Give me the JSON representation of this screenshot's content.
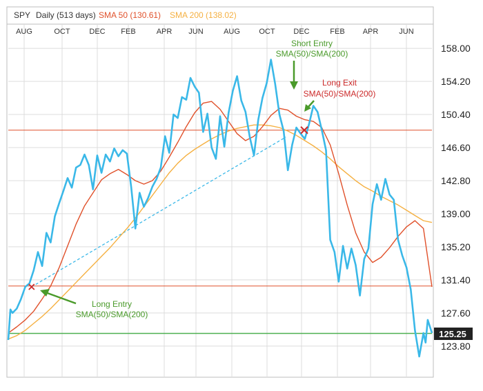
{
  "header": {
    "symbol": "SPY",
    "period": "Daily (513 days)",
    "sma50_label": "SMA 50 (130.61)",
    "sma200_label": "SMA 200 (138.02)"
  },
  "colors": {
    "price": "#3ab8e8",
    "sma50": "#e0502a",
    "sma200": "#f5b041",
    "entry_line": "#e0502a",
    "current_line": "#4caf50",
    "annotation_green": "#4a9a2a",
    "annotation_red": "#cc2a2a",
    "grid": "#dcdcdc",
    "last_price_bg": "#222222"
  },
  "annotations": {
    "long_entry_title": "Long Entry",
    "long_entry_sub": "SMA(50)/SMA(200)",
    "short_entry_title": "Short Entry",
    "short_entry_sub": "SMA(50)/SMA(200)",
    "long_exit_title": "Long Exit",
    "long_exit_sub": "SMA(50)/SMA(200)"
  },
  "chart_data": {
    "type": "line",
    "x_axis_labels": [
      "AUG",
      "OCT",
      "DEC",
      "FEB",
      "APR",
      "JUN",
      "AUG",
      "OCT",
      "DEC",
      "FEB",
      "APR",
      "JUN"
    ],
    "y_ticks": [
      158.0,
      154.2,
      150.4,
      146.6,
      142.8,
      139.0,
      135.2,
      131.4,
      127.6,
      123.8
    ],
    "y_tick_labels": [
      "158.00",
      "154.20",
      "150.40",
      "146.60",
      "142.80",
      "139.00",
      "135.20",
      "131.40",
      "127.60",
      "123.80"
    ],
    "ylim": [
      120.3,
      160.7
    ],
    "xlim": [
      0,
      100
    ],
    "last_price": 125.25,
    "last_price_label": "125.25",
    "long_entry_level": 130.7,
    "long_exit_level": 148.6,
    "series": [
      {
        "name": "SPY",
        "key": "price",
        "x": [
          0,
          0.5,
          1,
          2,
          3,
          4,
          5,
          6,
          7,
          8,
          9,
          10,
          11,
          12,
          13,
          14,
          15,
          16,
          17,
          18,
          19,
          20,
          21,
          22,
          23,
          24,
          25,
          26,
          27,
          28,
          29,
          30,
          31,
          32,
          33,
          34,
          35,
          36,
          37,
          38,
          39,
          40,
          41,
          42,
          43,
          44,
          45,
          46,
          47,
          48,
          49,
          50,
          51,
          52,
          53,
          54,
          55,
          56,
          57,
          58,
          59,
          60,
          61,
          62,
          63,
          64,
          65,
          66,
          67,
          68,
          69,
          70,
          71,
          72,
          73,
          74,
          75,
          76,
          77,
          78,
          79,
          80,
          81,
          82,
          83,
          84,
          85,
          86,
          87,
          88,
          89,
          90,
          91,
          92,
          93,
          94,
          95,
          96,
          97,
          98,
          98.5,
          99,
          100
        ],
        "y": [
          124.5,
          128.0,
          127.6,
          128.1,
          129.2,
          130.6,
          131.0,
          132.5,
          134.6,
          133.0,
          136.8,
          135.7,
          138.7,
          140.2,
          141.6,
          143.1,
          142.0,
          144.3,
          144.6,
          145.8,
          144.6,
          141.8,
          145.7,
          143.7,
          145.8,
          145.0,
          146.5,
          145.6,
          146.3,
          145.9,
          142.1,
          137.3,
          141.4,
          139.8,
          140.8,
          142.1,
          143.0,
          144.3,
          147.9,
          146.0,
          150.4,
          150.0,
          152.4,
          152.1,
          154.6,
          153.6,
          152.9,
          148.4,
          150.5,
          146.6,
          145.3,
          150.2,
          146.7,
          150.6,
          153.1,
          154.8,
          152.0,
          150.7,
          147.8,
          145.7,
          149.8,
          152.3,
          154.0,
          156.7,
          153.9,
          150.4,
          148.5,
          144.0,
          146.9,
          148.9,
          148.2,
          147.6,
          149.3,
          151.4,
          150.7,
          148.6,
          146.3,
          136.0,
          134.6,
          131.2,
          135.3,
          132.7,
          135.0,
          133.1,
          129.6,
          133.8,
          135.0,
          140.1,
          142.4,
          140.6,
          143.0,
          141.2,
          140.6,
          136.0,
          134.2,
          132.8,
          130.3,
          125.6,
          122.6,
          125.3,
          124.2,
          126.8,
          125.3
        ]
      },
      {
        "name": "SMA 50 (130.61)",
        "key": "sma50",
        "x": [
          0,
          2,
          4,
          6,
          8,
          10,
          12,
          14,
          16,
          18,
          20,
          22,
          24,
          26,
          28,
          30,
          32,
          34,
          36,
          38,
          40,
          42,
          44,
          46,
          48,
          50,
          52,
          54,
          56,
          58,
          60,
          62,
          64,
          66,
          68,
          70,
          72,
          74,
          76,
          78,
          80,
          82,
          84,
          86,
          88,
          90,
          92,
          94,
          96,
          98,
          100
        ],
        "y": [
          125.3,
          126.0,
          126.8,
          127.8,
          129.2,
          130.7,
          132.8,
          135.3,
          137.8,
          139.9,
          141.4,
          142.9,
          143.6,
          144.1,
          143.5,
          142.8,
          142.4,
          142.8,
          143.9,
          145.5,
          147.2,
          149.0,
          150.6,
          151.7,
          151.9,
          151.0,
          149.6,
          148.2,
          147.4,
          147.9,
          149.0,
          150.3,
          151.1,
          150.9,
          150.2,
          149.8,
          149.6,
          148.9,
          146.9,
          143.6,
          140.0,
          136.8,
          134.6,
          133.4,
          134.0,
          135.1,
          136.4,
          137.5,
          138.2,
          137.3,
          130.6
        ]
      },
      {
        "name": "SMA 200 (138.02)",
        "key": "sma200",
        "x": [
          0,
          2,
          4,
          6,
          8,
          10,
          12,
          14,
          16,
          18,
          20,
          22,
          24,
          26,
          28,
          30,
          32,
          34,
          36,
          38,
          40,
          42,
          44,
          46,
          48,
          50,
          52,
          54,
          56,
          58,
          60,
          62,
          64,
          66,
          68,
          70,
          72,
          74,
          76,
          78,
          80,
          82,
          84,
          86,
          88,
          90,
          92,
          94,
          96,
          98,
          100
        ],
        "y": [
          124.6,
          125.0,
          125.6,
          126.4,
          127.2,
          128.1,
          129.1,
          130.1,
          131.1,
          132.1,
          133.1,
          134.1,
          135.1,
          136.2,
          137.3,
          138.5,
          139.8,
          141.1,
          142.4,
          143.7,
          144.8,
          145.7,
          146.4,
          147.0,
          147.6,
          148.1,
          148.5,
          148.8,
          149.0,
          149.2,
          149.2,
          149.1,
          148.9,
          148.5,
          148.0,
          147.4,
          146.8,
          146.1,
          145.3,
          144.4,
          143.6,
          142.8,
          142.1,
          141.6,
          141.0,
          140.5,
          140.0,
          139.4,
          138.8,
          138.2,
          138.0
        ]
      }
    ],
    "trendline": {
      "x": [
        5.5,
        65.5
      ],
      "y": [
        130.6,
        147.8
      ]
    }
  }
}
